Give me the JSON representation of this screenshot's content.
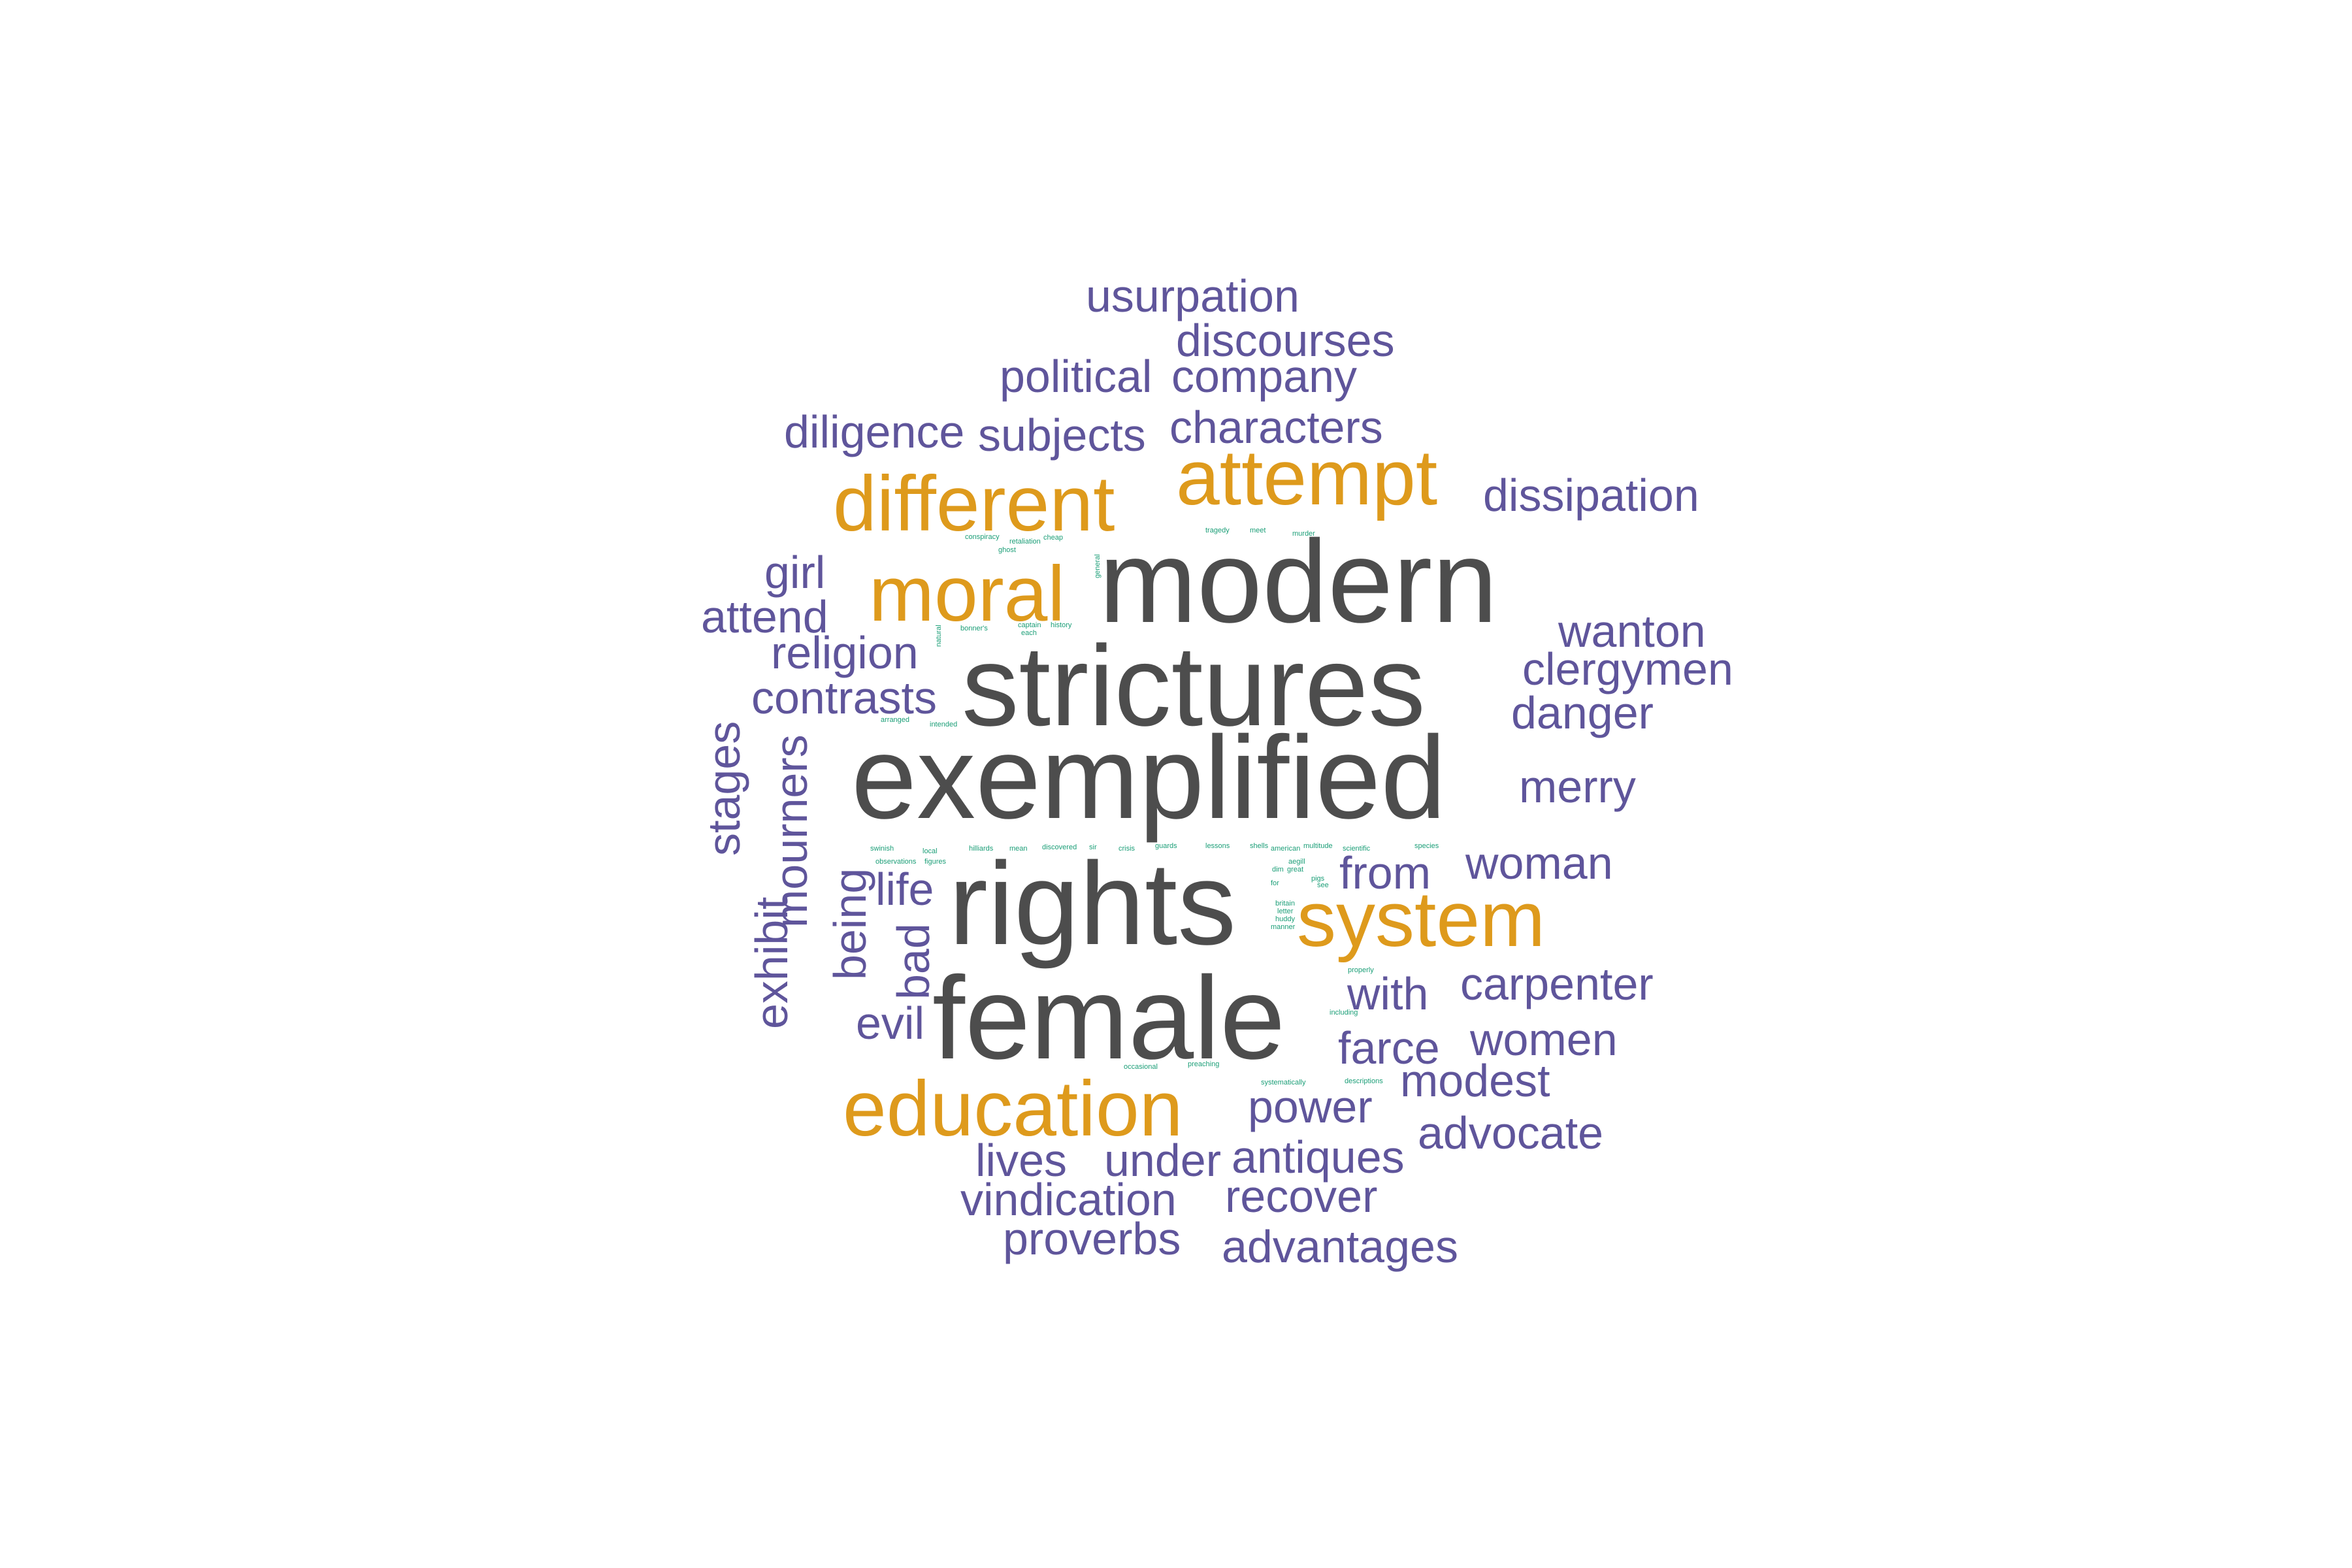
{
  "colors": {
    "dark": "#4d4d4d",
    "orange": "#de9a1c",
    "purple": "#5f559b",
    "green": "#1b9e77"
  },
  "words": [
    {
      "text": "modern",
      "group": "dark"
    },
    {
      "text": "strictures",
      "group": "dark"
    },
    {
      "text": "exemplified",
      "group": "dark"
    },
    {
      "text": "rights",
      "group": "dark"
    },
    {
      "text": "female",
      "group": "dark"
    },
    {
      "text": "different",
      "group": "orange"
    },
    {
      "text": "attempt",
      "group": "orange"
    },
    {
      "text": "moral",
      "group": "orange"
    },
    {
      "text": "system",
      "group": "orange"
    },
    {
      "text": "education",
      "group": "orange"
    },
    {
      "text": "usurpation",
      "group": "purple"
    },
    {
      "text": "discourses",
      "group": "purple"
    },
    {
      "text": "political",
      "group": "purple"
    },
    {
      "text": "company",
      "group": "purple"
    },
    {
      "text": "diligence",
      "group": "purple"
    },
    {
      "text": "subjects",
      "group": "purple"
    },
    {
      "text": "characters",
      "group": "purple"
    },
    {
      "text": "dissipation",
      "group": "purple"
    },
    {
      "text": "girl",
      "group": "purple"
    },
    {
      "text": "attend",
      "group": "purple"
    },
    {
      "text": "religion",
      "group": "purple"
    },
    {
      "text": "contrasts",
      "group": "purple"
    },
    {
      "text": "wanton",
      "group": "purple"
    },
    {
      "text": "clergymen",
      "group": "purple"
    },
    {
      "text": "danger",
      "group": "purple"
    },
    {
      "text": "merry",
      "group": "purple"
    },
    {
      "text": "stages",
      "group": "purple"
    },
    {
      "text": "mourners",
      "group": "purple"
    },
    {
      "text": "exhibit",
      "group": "purple"
    },
    {
      "text": "being",
      "group": "purple"
    },
    {
      "text": "bad",
      "group": "purple"
    },
    {
      "text": "life",
      "group": "purple"
    },
    {
      "text": "from",
      "group": "purple"
    },
    {
      "text": "woman",
      "group": "purple"
    },
    {
      "text": "with",
      "group": "purple"
    },
    {
      "text": "carpenter",
      "group": "purple"
    },
    {
      "text": "evil",
      "group": "purple"
    },
    {
      "text": "farce",
      "group": "purple"
    },
    {
      "text": "women",
      "group": "purple"
    },
    {
      "text": "modest",
      "group": "purple"
    },
    {
      "text": "power",
      "group": "purple"
    },
    {
      "text": "advocate",
      "group": "purple"
    },
    {
      "text": "lives",
      "group": "purple"
    },
    {
      "text": "under",
      "group": "purple"
    },
    {
      "text": "antiques",
      "group": "purple"
    },
    {
      "text": "vindication",
      "group": "purple"
    },
    {
      "text": "recover",
      "group": "purple"
    },
    {
      "text": "proverbs",
      "group": "purple"
    },
    {
      "text": "advantages",
      "group": "purple"
    },
    {
      "text": "conspiracy",
      "group": "green"
    },
    {
      "text": "retaliation",
      "group": "green"
    },
    {
      "text": "cheap",
      "group": "green"
    },
    {
      "text": "ghost",
      "group": "green"
    },
    {
      "text": "tragedy",
      "group": "green"
    },
    {
      "text": "meet",
      "group": "green"
    },
    {
      "text": "murder",
      "group": "green"
    },
    {
      "text": "general",
      "group": "green"
    },
    {
      "text": "natural",
      "group": "green"
    },
    {
      "text": "bonner's",
      "group": "green"
    },
    {
      "text": "captain",
      "group": "green"
    },
    {
      "text": "each",
      "group": "green"
    },
    {
      "text": "history",
      "group": "green"
    },
    {
      "text": "arranged",
      "group": "green"
    },
    {
      "text": "intended",
      "group": "green"
    },
    {
      "text": "swinish",
      "group": "green"
    },
    {
      "text": "local",
      "group": "green"
    },
    {
      "text": "observations",
      "group": "green"
    },
    {
      "text": "figures",
      "group": "green"
    },
    {
      "text": "hilliards",
      "group": "green"
    },
    {
      "text": "mean",
      "group": "green"
    },
    {
      "text": "discovered",
      "group": "green"
    },
    {
      "text": "sir",
      "group": "green"
    },
    {
      "text": "crisis",
      "group": "green"
    },
    {
      "text": "guards",
      "group": "green"
    },
    {
      "text": "lessons",
      "group": "green"
    },
    {
      "text": "shells",
      "group": "green"
    },
    {
      "text": "american",
      "group": "green"
    },
    {
      "text": "multitude",
      "group": "green"
    },
    {
      "text": "scientific",
      "group": "green"
    },
    {
      "text": "species",
      "group": "green"
    },
    {
      "text": "aegill",
      "group": "green"
    },
    {
      "text": "dim",
      "group": "green"
    },
    {
      "text": "great",
      "group": "green"
    },
    {
      "text": "for",
      "group": "green"
    },
    {
      "text": "pigs",
      "group": "green"
    },
    {
      "text": "see",
      "group": "green"
    },
    {
      "text": "britain",
      "group": "green"
    },
    {
      "text": "letter",
      "group": "green"
    },
    {
      "text": "huddy",
      "group": "green"
    },
    {
      "text": "manner",
      "group": "green"
    },
    {
      "text": "properly",
      "group": "green"
    },
    {
      "text": "including",
      "group": "green"
    },
    {
      "text": "occasional",
      "group": "green"
    },
    {
      "text": "preaching",
      "group": "green"
    },
    {
      "text": "systematically",
      "group": "green"
    },
    {
      "text": "descriptions",
      "group": "green"
    }
  ]
}
